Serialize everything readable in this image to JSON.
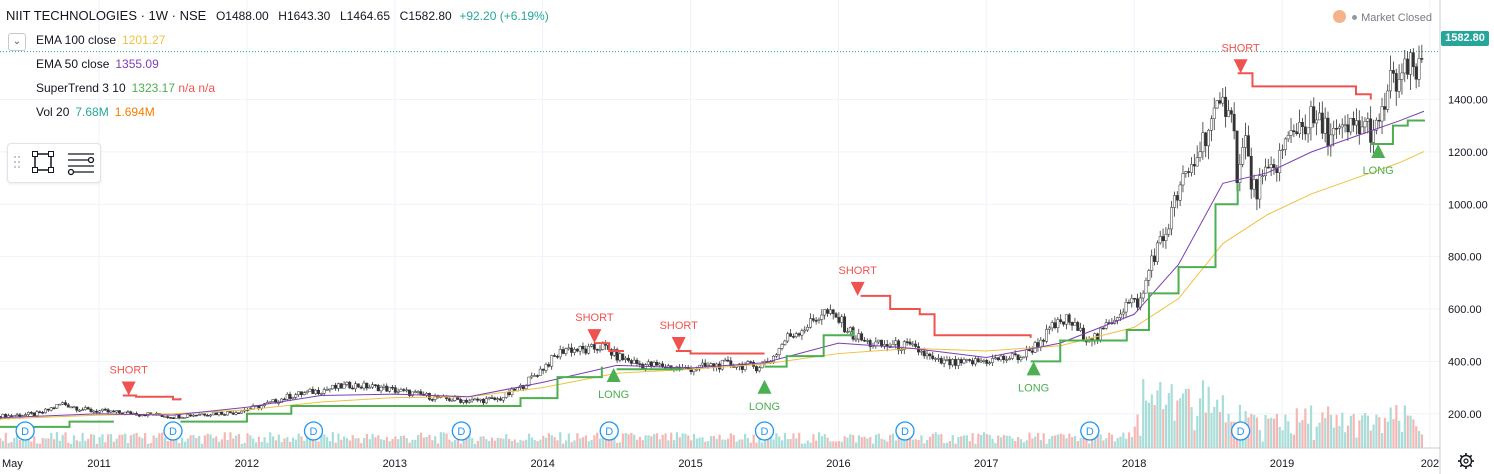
{
  "header": {
    "symbol": "NIIT TECHNOLOGIES · 1W · NSE",
    "open": "O1488.00",
    "high": "H1643.30",
    "low": "L1464.65",
    "close": "C1582.80",
    "change": "+92.20 (+6.19%)"
  },
  "indicators": [
    {
      "name": "EMA 100 close",
      "value": "1201.27",
      "color": "#f0c040"
    },
    {
      "name": "EMA 50 close",
      "value": "1355.09",
      "color": "#7b3fb5"
    },
    {
      "name": "SuperTrend 3 10",
      "value": "1323.17 n/a n/a",
      "color": "#4caf50",
      "value_colors": [
        "#4caf50",
        "#ef5350",
        "#ef5350"
      ]
    },
    {
      "name": "Vol 20",
      "value": "7.68M",
      "value2": "1.694M",
      "color": "#26a69a",
      "color2": "#f57c00"
    }
  ],
  "market_status": "Market Closed",
  "last_price_label": "1582.80",
  "dividend_marker_label": "D",
  "chart_data": {
    "type": "candlestick",
    "x_axis_labels": [
      "May",
      "2011",
      "2012",
      "2013",
      "2014",
      "2015",
      "2016",
      "2017",
      "2018",
      "2019",
      "202"
    ],
    "y_axis": {
      "ticks": [
        200,
        400,
        600,
        800,
        1000,
        1200,
        1400
      ],
      "tick_labels": [
        "200.00",
        "400.00",
        "600.00",
        "800.00",
        "1000.00",
        "1200.00",
        "1400.00"
      ],
      "range": [
        100,
        1650
      ]
    },
    "x_range_years": [
      2010.33,
      2019.96
    ],
    "close_path": [
      [
        2010.33,
        190
      ],
      [
        2010.6,
        200
      ],
      [
        2010.75,
        240
      ],
      [
        2010.9,
        215
      ],
      [
        2011.1,
        205
      ],
      [
        2011.3,
        200
      ],
      [
        2011.5,
        190
      ],
      [
        2011.7,
        200
      ],
      [
        2011.9,
        205
      ],
      [
        2012.1,
        230
      ],
      [
        2012.3,
        270
      ],
      [
        2012.5,
        290
      ],
      [
        2012.7,
        310
      ],
      [
        2012.9,
        300
      ],
      [
        2013.1,
        280
      ],
      [
        2013.3,
        260
      ],
      [
        2013.5,
        250
      ],
      [
        2013.7,
        255
      ],
      [
        2013.85,
        300
      ],
      [
        2013.95,
        350
      ],
      [
        2014.05,
        400
      ],
      [
        2014.15,
        450
      ],
      [
        2014.3,
        440
      ],
      [
        2014.4,
        460
      ],
      [
        2014.5,
        420
      ],
      [
        2014.65,
        390
      ],
      [
        2014.85,
        380
      ],
      [
        2014.95,
        370
      ],
      [
        2015.1,
        380
      ],
      [
        2015.25,
        390
      ],
      [
        2015.45,
        380
      ],
      [
        2015.55,
        410
      ],
      [
        2015.65,
        490
      ],
      [
        2015.8,
        540
      ],
      [
        2015.9,
        590
      ],
      [
        2016.0,
        560
      ],
      [
        2016.1,
        500
      ],
      [
        2016.2,
        470
      ],
      [
        2016.3,
        460
      ],
      [
        2016.45,
        460
      ],
      [
        2016.55,
        440
      ],
      [
        2016.65,
        400
      ],
      [
        2016.8,
        390
      ],
      [
        2016.95,
        400
      ],
      [
        2017.1,
        410
      ],
      [
        2017.25,
        420
      ],
      [
        2017.35,
        470
      ],
      [
        2017.45,
        530
      ],
      [
        2017.55,
        560
      ],
      [
        2017.65,
        500
      ],
      [
        2017.75,
        490
      ],
      [
        2017.85,
        560
      ],
      [
        2017.95,
        620
      ],
      [
        2018.05,
        630
      ],
      [
        2018.12,
        800
      ],
      [
        2018.2,
        870
      ],
      [
        2018.3,
        1050
      ],
      [
        2018.4,
        1150
      ],
      [
        2018.5,
        1300
      ],
      [
        2018.58,
        1350
      ],
      [
        2018.65,
        1420
      ],
      [
        2018.7,
        1100
      ],
      [
        2018.75,
        1250
      ],
      [
        2018.8,
        1050
      ],
      [
        2018.9,
        1100
      ],
      [
        2019.0,
        1200
      ],
      [
        2019.1,
        1300
      ],
      [
        2019.2,
        1320
      ],
      [
        2019.3,
        1280
      ],
      [
        2019.4,
        1260
      ],
      [
        2019.5,
        1300
      ],
      [
        2019.6,
        1290
      ],
      [
        2019.65,
        1270
      ],
      [
        2019.72,
        1450
      ],
      [
        2019.8,
        1480
      ],
      [
        2019.88,
        1520
      ],
      [
        2019.93,
        1490
      ],
      [
        2019.96,
        1582.8
      ]
    ],
    "ema100": [
      [
        2010.33,
        180
      ],
      [
        2011.0,
        195
      ],
      [
        2011.5,
        200
      ],
      [
        2012.0,
        215
      ],
      [
        2012.5,
        245
      ],
      [
        2013.0,
        262
      ],
      [
        2013.5,
        265
      ],
      [
        2014.0,
        300
      ],
      [
        2014.5,
        355
      ],
      [
        2015.0,
        370
      ],
      [
        2015.5,
        390
      ],
      [
        2016.0,
        430
      ],
      [
        2016.5,
        450
      ],
      [
        2017.0,
        440
      ],
      [
        2017.5,
        460
      ],
      [
        2018.0,
        530
      ],
      [
        2018.3,
        640
      ],
      [
        2018.6,
        850
      ],
      [
        2018.9,
        960
      ],
      [
        2019.2,
        1040
      ],
      [
        2019.5,
        1100
      ],
      [
        2019.8,
        1160
      ],
      [
        2019.96,
        1201.27
      ]
    ],
    "ema50": [
      [
        2010.33,
        185
      ],
      [
        2011.0,
        200
      ],
      [
        2011.5,
        195
      ],
      [
        2012.0,
        225
      ],
      [
        2012.5,
        270
      ],
      [
        2013.0,
        275
      ],
      [
        2013.5,
        265
      ],
      [
        2014.0,
        320
      ],
      [
        2014.5,
        385
      ],
      [
        2015.0,
        375
      ],
      [
        2015.5,
        395
      ],
      [
        2016.0,
        470
      ],
      [
        2016.5,
        450
      ],
      [
        2017.0,
        415
      ],
      [
        2017.5,
        470
      ],
      [
        2018.0,
        580
      ],
      [
        2018.3,
        770
      ],
      [
        2018.6,
        1080
      ],
      [
        2018.9,
        1120
      ],
      [
        2019.2,
        1200
      ],
      [
        2019.5,
        1260
      ],
      [
        2019.8,
        1320
      ],
      [
        2019.96,
        1355.09
      ]
    ],
    "supertrend": [
      {
        "trend": "up",
        "points": [
          [
            2010.33,
            150
          ],
          [
            2010.8,
            170
          ],
          [
            2011.1,
            170
          ]
        ]
      },
      {
        "trend": "down",
        "points": [
          [
            2011.16,
            270
          ],
          [
            2011.25,
            265
          ],
          [
            2011.5,
            255
          ],
          [
            2011.55,
            260
          ]
        ]
      },
      {
        "trend": "up",
        "points": [
          [
            2011.55,
            170
          ],
          [
            2012.0,
            200
          ],
          [
            2012.3,
            230
          ],
          [
            2013.5,
            230
          ],
          [
            2013.85,
            260
          ],
          [
            2014.1,
            340
          ],
          [
            2014.4,
            380
          ]
        ]
      },
      {
        "trend": "down",
        "points": [
          [
            2014.35,
            470
          ],
          [
            2014.45,
            440
          ],
          [
            2014.55,
            440
          ]
        ]
      },
      {
        "trend": "up",
        "points": [
          [
            2014.5,
            370
          ],
          [
            2014.95,
            370
          ]
        ]
      },
      {
        "trend": "down",
        "points": [
          [
            2014.9,
            440
          ],
          [
            2015.0,
            430
          ],
          [
            2015.5,
            430
          ]
        ]
      },
      {
        "trend": "up",
        "points": [
          [
            2015.5,
            380
          ],
          [
            2015.65,
            420
          ],
          [
            2015.9,
            500
          ],
          [
            2016.1,
            520
          ]
        ]
      },
      {
        "trend": "down",
        "points": [
          [
            2016.15,
            650
          ],
          [
            2016.35,
            600
          ],
          [
            2016.55,
            580
          ],
          [
            2016.65,
            500
          ],
          [
            2017.3,
            490
          ]
        ]
      },
      {
        "trend": "up",
        "points": [
          [
            2017.3,
            400
          ],
          [
            2017.5,
            480
          ],
          [
            2017.75,
            480
          ],
          [
            2017.95,
            520
          ],
          [
            2018.1,
            660
          ],
          [
            2018.3,
            760
          ],
          [
            2018.55,
            1000
          ],
          [
            2018.7,
            1080
          ]
        ]
      },
      {
        "trend": "down",
        "points": [
          [
            2018.7,
            1500
          ],
          [
            2018.8,
            1450
          ],
          [
            2019.5,
            1420
          ],
          [
            2019.6,
            1400
          ]
        ]
      },
      {
        "trend": "up",
        "points": [
          [
            2019.6,
            1230
          ],
          [
            2019.75,
            1300
          ],
          [
            2019.85,
            1320
          ],
          [
            2019.96,
            1323.17
          ]
        ]
      }
    ],
    "signals": [
      {
        "type": "SHORT",
        "x": 2011.2,
        "price": 270
      },
      {
        "type": "SHORT",
        "x": 2014.35,
        "price": 470
      },
      {
        "type": "LONG",
        "x": 2014.48,
        "price": 375
      },
      {
        "type": "SHORT",
        "x": 2014.92,
        "price": 440
      },
      {
        "type": "LONG",
        "x": 2015.5,
        "price": 330
      },
      {
        "type": "SHORT",
        "x": 2016.13,
        "price": 650
      },
      {
        "type": "LONG",
        "x": 2017.32,
        "price": 400
      },
      {
        "type": "SHORT",
        "x": 2018.72,
        "price": 1500
      },
      {
        "type": "LONG",
        "x": 2019.65,
        "price": 1230
      }
    ],
    "dividends_x": [
      2010.5,
      2011.5,
      2012.45,
      2013.45,
      2014.45,
      2015.5,
      2016.45,
      2017.7,
      2018.72
    ],
    "volume_scale_note": "volume bars relative",
    "gridlines": true
  }
}
